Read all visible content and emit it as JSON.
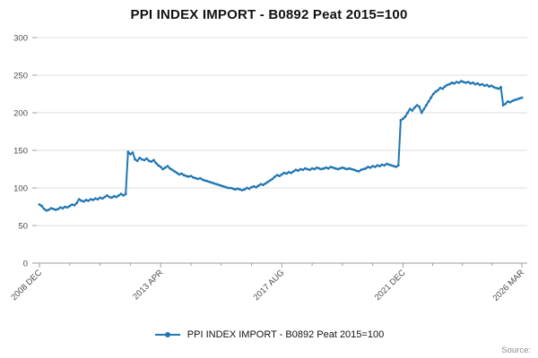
{
  "title": "PPI INDEX IMPORT - B0892 Peat 2015=100",
  "legend": {
    "label": "PPI INDEX IMPORT - B0892 Peat 2015=100"
  },
  "source_label": "Source:",
  "colors": {
    "line": "#2077b4",
    "grid": "#dddddd",
    "axis": "#9e9e9e",
    "tick_text": "#4d4d4d",
    "title_text": "#111111",
    "source_text": "#8c8c8c"
  },
  "chart_data": {
    "type": "line",
    "title": "PPI INDEX IMPORT - B0892 Peat 2015=100",
    "xlabel": "",
    "ylabel": "",
    "ylim": [
      0,
      300
    ],
    "grid": true,
    "legend_position": "bottom",
    "y_ticks": [
      0,
      50,
      100,
      150,
      200,
      250,
      300
    ],
    "x_tick_labels": [
      "2008 DEC",
      "2013 APR",
      "2017 AUG",
      "2021 DEC",
      "2026 MAR"
    ],
    "x_tick_indices": [
      0,
      52,
      104,
      156,
      207
    ],
    "x_start": "2008-12",
    "x_end": "2026-03",
    "x_frequency": "monthly",
    "series": [
      {
        "name": "PPI INDEX IMPORT - B0892 Peat 2015=100",
        "values": [
          78,
          76,
          72,
          70,
          71,
          73,
          72,
          71,
          72,
          74,
          73,
          75,
          74,
          76,
          78,
          77,
          80,
          85,
          83,
          82,
          84,
          83,
          85,
          84,
          86,
          85,
          87,
          86,
          88,
          90,
          88,
          87,
          89,
          88,
          90,
          92,
          90,
          92,
          148,
          145,
          147,
          138,
          136,
          140,
          138,
          137,
          139,
          136,
          135,
          137,
          133,
          130,
          128,
          125,
          127,
          129,
          126,
          124,
          122,
          120,
          118,
          119,
          117,
          116,
          115,
          116,
          114,
          113,
          112,
          113,
          111,
          110,
          109,
          108,
          107,
          106,
          105,
          104,
          103,
          102,
          101,
          100,
          100,
          99,
          98,
          99,
          98,
          97,
          98,
          100,
          99,
          101,
          102,
          101,
          103,
          105,
          104,
          106,
          108,
          110,
          112,
          115,
          117,
          116,
          118,
          120,
          119,
          121,
          120,
          122,
          124,
          123,
          125,
          124,
          126,
          125,
          124,
          126,
          125,
          127,
          126,
          125,
          126,
          127,
          126,
          128,
          127,
          126,
          125,
          126,
          127,
          126,
          125,
          126,
          125,
          124,
          123,
          122,
          124,
          125,
          126,
          128,
          127,
          129,
          128,
          130,
          129,
          131,
          130,
          132,
          131,
          130,
          129,
          128,
          130,
          190,
          192,
          195,
          200,
          205,
          203,
          207,
          210,
          208,
          200,
          205,
          210,
          215,
          220,
          225,
          228,
          230,
          233,
          232,
          235,
          237,
          238,
          240,
          239,
          241,
          240,
          242,
          241,
          240,
          241,
          239,
          240,
          238,
          239,
          237,
          238,
          236,
          237,
          235,
          236,
          234,
          233,
          232,
          234,
          210,
          212,
          215,
          214,
          216,
          217,
          218,
          219,
          220
        ]
      }
    ]
  }
}
